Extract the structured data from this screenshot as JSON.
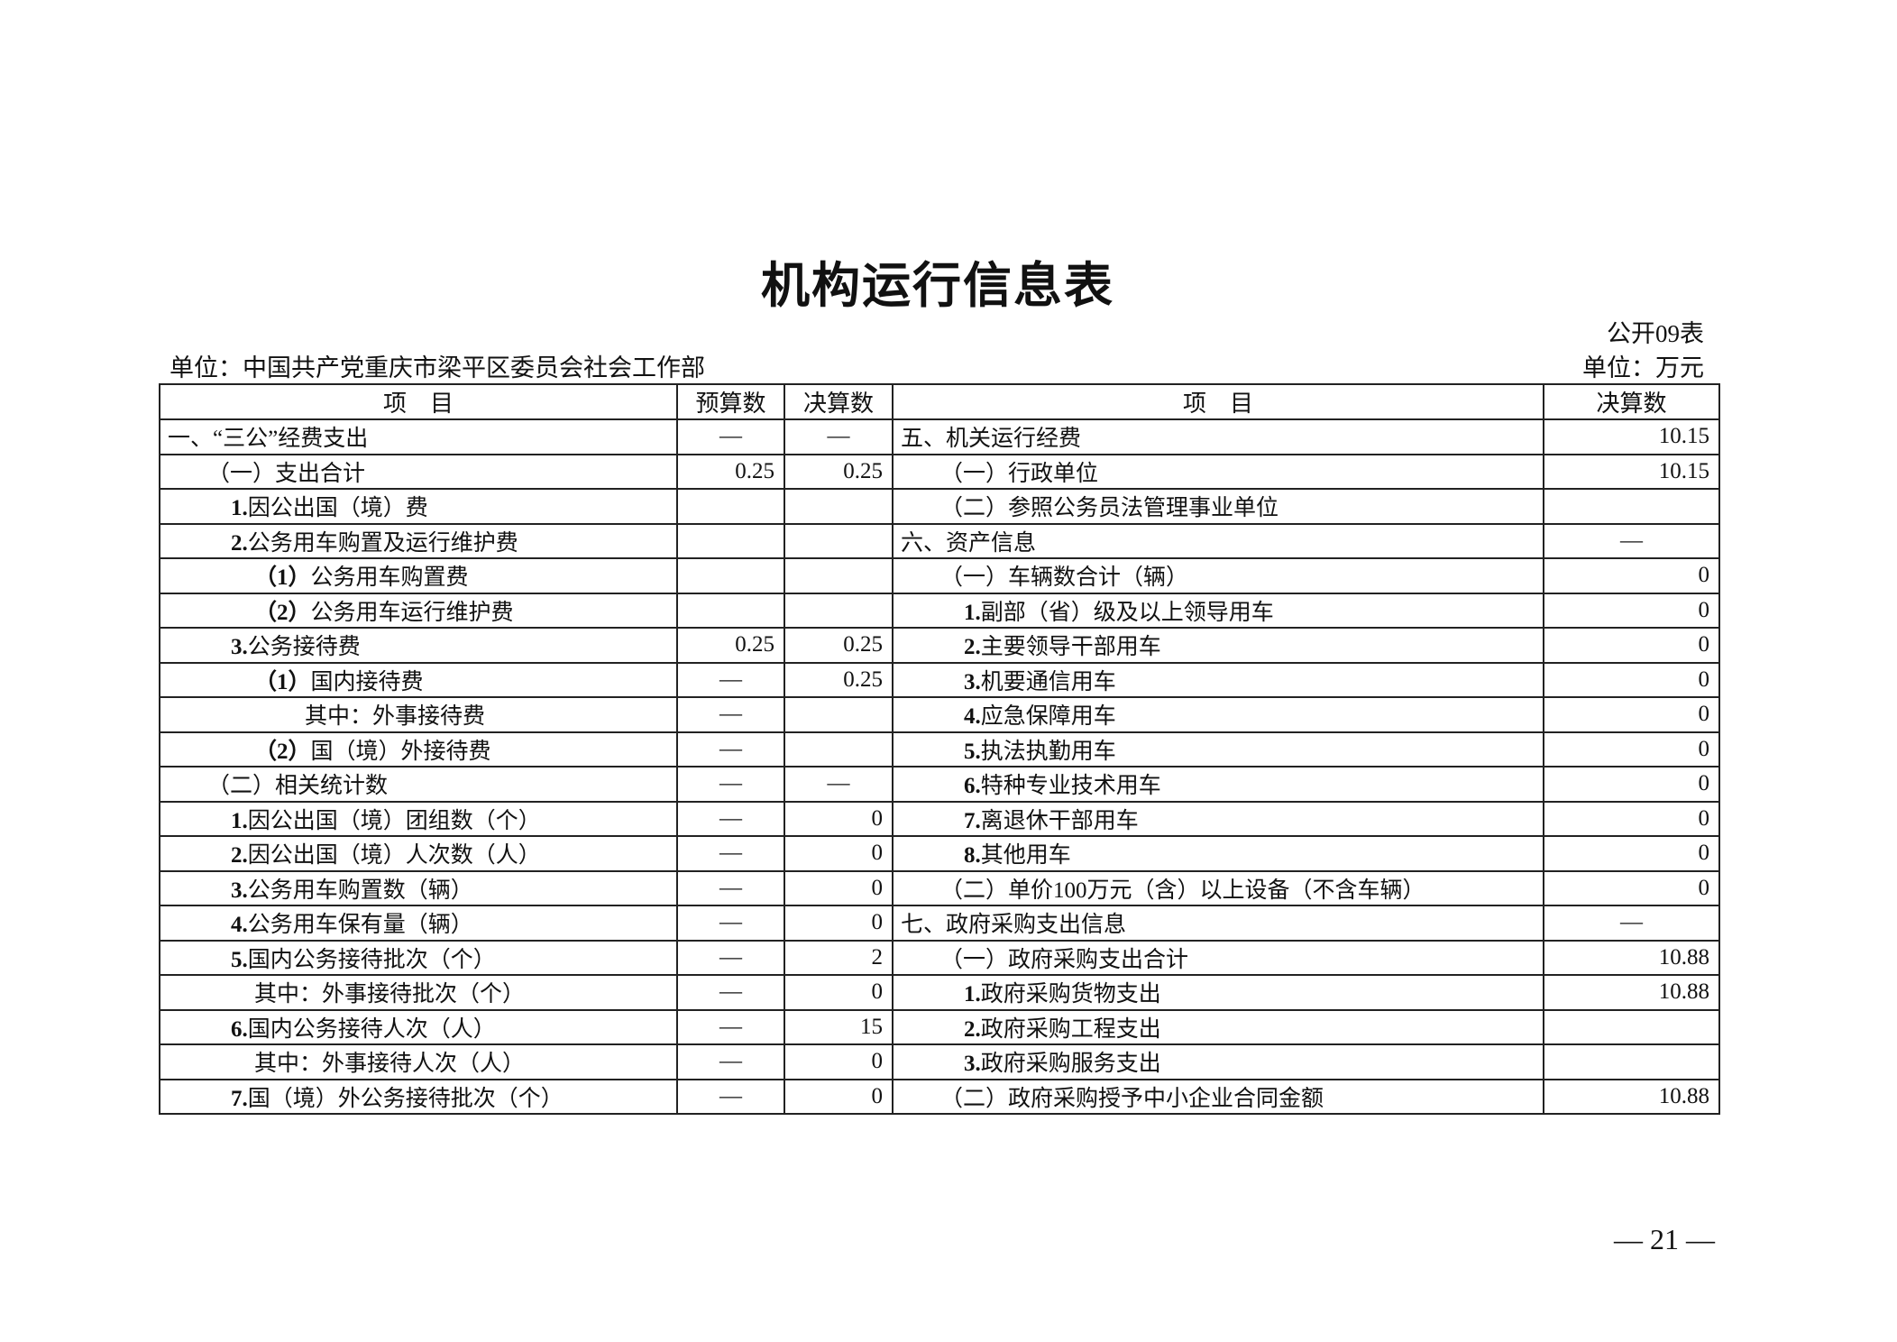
{
  "title": "机构运行信息表",
  "form_no": "公开09表",
  "unit_left": "单位：中国共产党重庆市梁平区委员会社会工作部",
  "unit_right": "单位：万元",
  "headers": {
    "item_left": "项　目",
    "budget": "预算数",
    "final_left": "决算数",
    "item_right": "项　目",
    "final_right": "决算数"
  },
  "rows": [
    {
      "left": {
        "num": "",
        "text": "一、“三公”经费支出",
        "indent": 0,
        "budget": "—",
        "final": "—"
      },
      "right": {
        "num": "",
        "text": "五、机关运行经费",
        "indent": 0,
        "final": "10.15"
      }
    },
    {
      "left": {
        "num": "",
        "text": "（一）支出合计",
        "indent": 1,
        "budget": "0.25",
        "final": "0.25"
      },
      "right": {
        "num": "",
        "text": "（一）行政单位",
        "indent": 1,
        "final": "10.15"
      }
    },
    {
      "left": {
        "num": "1.",
        "text": "因公出国（境）费",
        "indent": 2,
        "budget": "",
        "final": ""
      },
      "right": {
        "num": "",
        "text": "（二）参照公务员法管理事业单位",
        "indent": 1,
        "final": ""
      }
    },
    {
      "left": {
        "num": "2.",
        "text": "公务用车购置及运行维护费",
        "indent": 2,
        "budget": "",
        "final": ""
      },
      "right": {
        "num": "",
        "text": "六、资产信息",
        "indent": 0,
        "final": "—"
      }
    },
    {
      "left": {
        "num": "（1）",
        "text": "公务用车购置费",
        "indent": 3,
        "budget": "",
        "final": ""
      },
      "right": {
        "num": "",
        "text": "（一）车辆数合计（辆）",
        "indent": 1,
        "final": "0"
      }
    },
    {
      "left": {
        "num": "（2）",
        "text": "公务用车运行维护费",
        "indent": 3,
        "budget": "",
        "final": ""
      },
      "right": {
        "num": "1.",
        "text": "副部（省）级及以上领导用车",
        "indent": 2,
        "final": "0"
      }
    },
    {
      "left": {
        "num": "3.",
        "text": "公务接待费",
        "indent": 2,
        "budget": "0.25",
        "final": "0.25"
      },
      "right": {
        "num": "2.",
        "text": "主要领导干部用车",
        "indent": 2,
        "final": "0"
      }
    },
    {
      "left": {
        "num": "（1）",
        "text": "国内接待费",
        "indent": 3,
        "budget": "—",
        "final": "0.25"
      },
      "right": {
        "num": "3.",
        "text": "机要通信用车",
        "indent": 2,
        "final": "0"
      }
    },
    {
      "left": {
        "num": "",
        "text": "其中：外事接待费",
        "indent": 4,
        "budget": "—",
        "final": ""
      },
      "right": {
        "num": "4.",
        "text": "应急保障用车",
        "indent": 2,
        "final": "0"
      }
    },
    {
      "left": {
        "num": "（2）",
        "text": "国（境）外接待费",
        "indent": 3,
        "budget": "—",
        "final": ""
      },
      "right": {
        "num": "5.",
        "text": "执法执勤用车",
        "indent": 2,
        "final": "0"
      }
    },
    {
      "left": {
        "num": "",
        "text": "（二）相关统计数",
        "indent": 1,
        "budget": "—",
        "final": "—"
      },
      "right": {
        "num": "6.",
        "text": "特种专业技术用车",
        "indent": 2,
        "final": "0"
      }
    },
    {
      "left": {
        "num": "1.",
        "text": "因公出国（境）团组数（个）",
        "indent": 2,
        "budget": "—",
        "final": "0"
      },
      "right": {
        "num": "7.",
        "text": "离退休干部用车",
        "indent": 2,
        "final": "0"
      }
    },
    {
      "left": {
        "num": "2.",
        "text": "因公出国（境）人次数（人）",
        "indent": 2,
        "budget": "—",
        "final": "0"
      },
      "right": {
        "num": "8.",
        "text": "其他用车",
        "indent": 2,
        "final": "0"
      }
    },
    {
      "left": {
        "num": "3.",
        "text": "公务用车购置数（辆）",
        "indent": 2,
        "budget": "—",
        "final": "0"
      },
      "right": {
        "num": "",
        "text": "（二）单价100万元（含）以上设备（不含车辆）",
        "indent": 1,
        "final": "0"
      }
    },
    {
      "left": {
        "num": "4.",
        "text": "公务用车保有量（辆）",
        "indent": 2,
        "budget": "—",
        "final": "0"
      },
      "right": {
        "num": "",
        "text": "七、政府采购支出信息",
        "indent": 0,
        "final": "—"
      }
    },
    {
      "left": {
        "num": "5.",
        "text": "国内公务接待批次（个）",
        "indent": 2,
        "budget": "—",
        "final": "2"
      },
      "right": {
        "num": "",
        "text": "（一）政府采购支出合计",
        "indent": 1,
        "final": "10.88"
      }
    },
    {
      "left": {
        "num": "",
        "text": "其中：外事接待批次（个）",
        "indent": 3,
        "budget": "—",
        "final": "0"
      },
      "right": {
        "num": "1.",
        "text": "政府采购货物支出",
        "indent": 2,
        "final": "10.88"
      }
    },
    {
      "left": {
        "num": "6.",
        "text": "国内公务接待人次（人）",
        "indent": 2,
        "budget": "—",
        "final": "15"
      },
      "right": {
        "num": "2.",
        "text": "政府采购工程支出",
        "indent": 2,
        "final": ""
      }
    },
    {
      "left": {
        "num": "",
        "text": "其中：外事接待人次（人）",
        "indent": 3,
        "budget": "—",
        "final": "0"
      },
      "right": {
        "num": "3.",
        "text": "政府采购服务支出",
        "indent": 2,
        "final": ""
      }
    },
    {
      "left": {
        "num": "7.",
        "text": "国（境）外公务接待批次（个）",
        "indent": 2,
        "budget": "—",
        "final": "0"
      },
      "right": {
        "num": "",
        "text": "（二）政府采购授予中小企业合同金额",
        "indent": 1,
        "final": "10.88"
      }
    }
  ],
  "page_number": "— 21 —"
}
